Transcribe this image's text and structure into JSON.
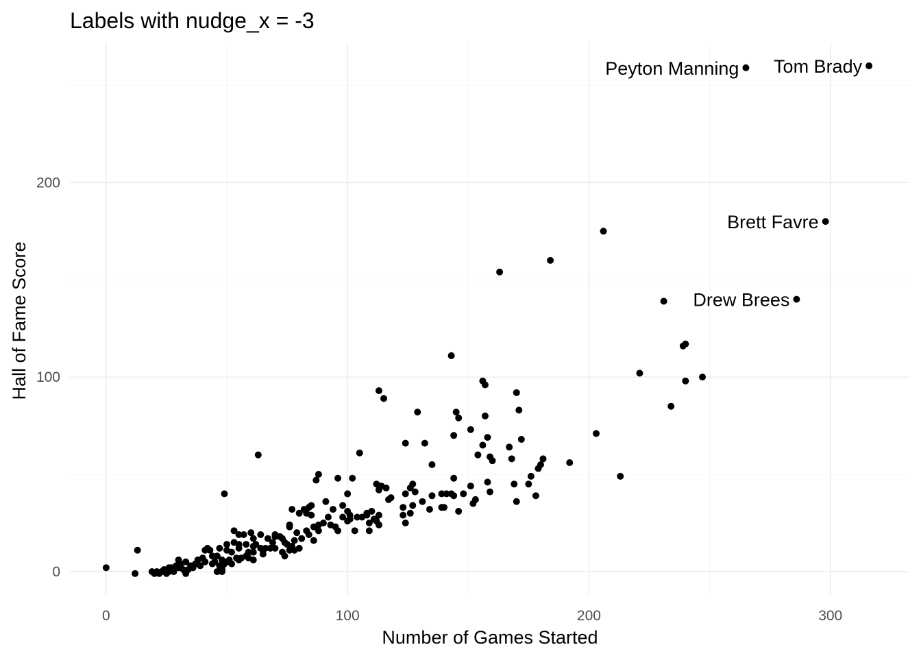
{
  "chart_data": {
    "type": "scatter",
    "title": "Labels with nudge_x = -3",
    "xlabel": "Number of Games Started",
    "ylabel": "Hall of Fame Score",
    "xlim": [
      -15,
      333
    ],
    "ylim": [
      -12,
      272
    ],
    "x_ticks": [
      0,
      100,
      200,
      300
    ],
    "y_ticks": [
      0,
      100,
      200
    ],
    "x_tick_labels": [
      "0",
      "100",
      "200",
      "300"
    ],
    "y_tick_labels": [
      "0",
      "100",
      "200"
    ],
    "grid": true,
    "point_color": "#000000",
    "labels": [
      {
        "text": "Tom Brady",
        "x": 316,
        "y": 260
      },
      {
        "text": "Peyton Manning",
        "x": 265,
        "y": 259
      },
      {
        "text": "Brett Favre",
        "x": 298,
        "y": 180
      },
      {
        "text": "Drew Brees",
        "x": 286,
        "y": 140
      }
    ],
    "points": [
      [
        316,
        260
      ],
      [
        265,
        259
      ],
      [
        298,
        180
      ],
      [
        286,
        140
      ],
      [
        206,
        175
      ],
      [
        184,
        160
      ],
      [
        163,
        154
      ],
      [
        231,
        139
      ],
      [
        240,
        117
      ],
      [
        239,
        116
      ],
      [
        221,
        102
      ],
      [
        247,
        100
      ],
      [
        240,
        98
      ],
      [
        234,
        85
      ],
      [
        143,
        111
      ],
      [
        203,
        71
      ],
      [
        213,
        49
      ],
      [
        192,
        56
      ],
      [
        156,
        98
      ],
      [
        157,
        96
      ],
      [
        113,
        93
      ],
      [
        170,
        92
      ],
      [
        115,
        89
      ],
      [
        129,
        82
      ],
      [
        145,
        82
      ],
      [
        171,
        83
      ],
      [
        146,
        79
      ],
      [
        157,
        80
      ],
      [
        151,
        73
      ],
      [
        144,
        70
      ],
      [
        158,
        69
      ],
      [
        172,
        68
      ],
      [
        124,
        66
      ],
      [
        132,
        66
      ],
      [
        167,
        64
      ],
      [
        156,
        65
      ],
      [
        105,
        61
      ],
      [
        63,
        60
      ],
      [
        154,
        60
      ],
      [
        159,
        59
      ],
      [
        160,
        57
      ],
      [
        168,
        58
      ],
      [
        181,
        58
      ],
      [
        135,
        55
      ],
      [
        180,
        55
      ],
      [
        179,
        53
      ],
      [
        88,
        50
      ],
      [
        96,
        48
      ],
      [
        102,
        48
      ],
      [
        144,
        48
      ],
      [
        176,
        49
      ],
      [
        87,
        47
      ],
      [
        158,
        46
      ],
      [
        169,
        45
      ],
      [
        112,
        45
      ],
      [
        114,
        44
      ],
      [
        116,
        43
      ],
      [
        113,
        42
      ],
      [
        127,
        45
      ],
      [
        126,
        43
      ],
      [
        141,
        40
      ],
      [
        151,
        44
      ],
      [
        175,
        45
      ],
      [
        118,
        38
      ],
      [
        135,
        39
      ],
      [
        139,
        40
      ],
      [
        143,
        40
      ],
      [
        148,
        40
      ],
      [
        159,
        41
      ],
      [
        100,
        40
      ],
      [
        49,
        40
      ],
      [
        153,
        37
      ],
      [
        152,
        35
      ],
      [
        123,
        33
      ],
      [
        127,
        34
      ],
      [
        131,
        36
      ],
      [
        144,
        39
      ],
      [
        134,
        32
      ],
      [
        139,
        33
      ],
      [
        140,
        33
      ],
      [
        146,
        31
      ],
      [
        170,
        36
      ],
      [
        178,
        39
      ],
      [
        91,
        36
      ],
      [
        94,
        32
      ],
      [
        98,
        34
      ],
      [
        100,
        31
      ],
      [
        101,
        29
      ],
      [
        104,
        28
      ],
      [
        108,
        29
      ],
      [
        110,
        31
      ],
      [
        111,
        27
      ],
      [
        113,
        29
      ],
      [
        123,
        29
      ],
      [
        126,
        30
      ],
      [
        77,
        32
      ],
      [
        82,
        32
      ],
      [
        84,
        33
      ],
      [
        85,
        34
      ],
      [
        80,
        30
      ],
      [
        83,
        30
      ],
      [
        85,
        29
      ],
      [
        92,
        28
      ],
      [
        98,
        28
      ],
      [
        101,
        27
      ],
      [
        93,
        24
      ],
      [
        100,
        26
      ],
      [
        106,
        28
      ],
      [
        109,
        25
      ],
      [
        95,
        23
      ],
      [
        90,
        25
      ],
      [
        86,
        23
      ],
      [
        88,
        24
      ],
      [
        83,
        21
      ],
      [
        79,
        20
      ],
      [
        76,
        23
      ],
      [
        76,
        24
      ],
      [
        72,
        18
      ],
      [
        70,
        19
      ],
      [
        64,
        19
      ],
      [
        57,
        19
      ],
      [
        53,
        21
      ],
      [
        55,
        19
      ],
      [
        60,
        20
      ],
      [
        61,
        17
      ],
      [
        67,
        17
      ],
      [
        69,
        15
      ],
      [
        73,
        17
      ],
      [
        75,
        14
      ],
      [
        77,
        13
      ],
      [
        78,
        16
      ],
      [
        81,
        17
      ],
      [
        86,
        16
      ],
      [
        78,
        11
      ],
      [
        70,
        12
      ],
      [
        64,
        12
      ],
      [
        59,
        10
      ],
      [
        55,
        12
      ],
      [
        58,
        14
      ],
      [
        61,
        13
      ],
      [
        52,
        10
      ],
      [
        50,
        11
      ],
      [
        47,
        12
      ],
      [
        43,
        11
      ],
      [
        40,
        7
      ],
      [
        46,
        8
      ],
      [
        48,
        6
      ],
      [
        50,
        5
      ],
      [
        44,
        4
      ],
      [
        41,
        5
      ],
      [
        38,
        6
      ],
      [
        35,
        3
      ],
      [
        33,
        5
      ],
      [
        31,
        4
      ],
      [
        30,
        6
      ],
      [
        29,
        3
      ],
      [
        27,
        2
      ],
      [
        26,
        0
      ],
      [
        24,
        1
      ],
      [
        23,
        0
      ],
      [
        21,
        0
      ],
      [
        20,
        -1
      ],
      [
        19,
        0
      ],
      [
        22,
        -1
      ],
      [
        25,
        -1
      ],
      [
        28,
        0
      ],
      [
        32,
        1
      ],
      [
        36,
        2
      ],
      [
        37,
        4
      ],
      [
        39,
        3
      ],
      [
        47,
        3
      ],
      [
        48,
        1
      ],
      [
        12,
        -1
      ],
      [
        13,
        11
      ],
      [
        0,
        2
      ],
      [
        54,
        7
      ],
      [
        58,
        8
      ],
      [
        65,
        9
      ],
      [
        73,
        10
      ],
      [
        53,
        15
      ],
      [
        46,
        0
      ],
      [
        48,
        0
      ],
      [
        48,
        2
      ],
      [
        49,
        4
      ],
      [
        52,
        4
      ],
      [
        51,
        6
      ],
      [
        45,
        5
      ],
      [
        42,
        12
      ],
      [
        61,
        10
      ],
      [
        68,
        12
      ],
      [
        34,
        1
      ],
      [
        33,
        -1
      ],
      [
        24,
        1
      ],
      [
        26,
        2
      ],
      [
        65,
        11
      ],
      [
        74,
        15
      ],
      [
        80,
        12
      ],
      [
        84,
        19
      ],
      [
        88,
        21
      ],
      [
        96,
        21
      ],
      [
        103,
        21
      ],
      [
        109,
        21
      ],
      [
        113,
        24
      ],
      [
        124,
        25
      ],
      [
        30,
        2
      ],
      [
        41,
        11
      ],
      [
        74,
        8
      ],
      [
        70,
        18
      ],
      [
        61,
        6
      ],
      [
        59,
        7
      ],
      [
        44,
        8
      ],
      [
        55,
        6
      ],
      [
        66,
        12
      ],
      [
        76,
        11
      ],
      [
        124,
        40
      ],
      [
        117,
        37
      ],
      [
        56,
        7
      ],
      [
        108,
        30
      ],
      [
        112,
        26
      ],
      [
        128,
        41
      ],
      [
        62,
        14
      ],
      [
        50,
        14
      ],
      [
        55,
        14
      ]
    ]
  }
}
